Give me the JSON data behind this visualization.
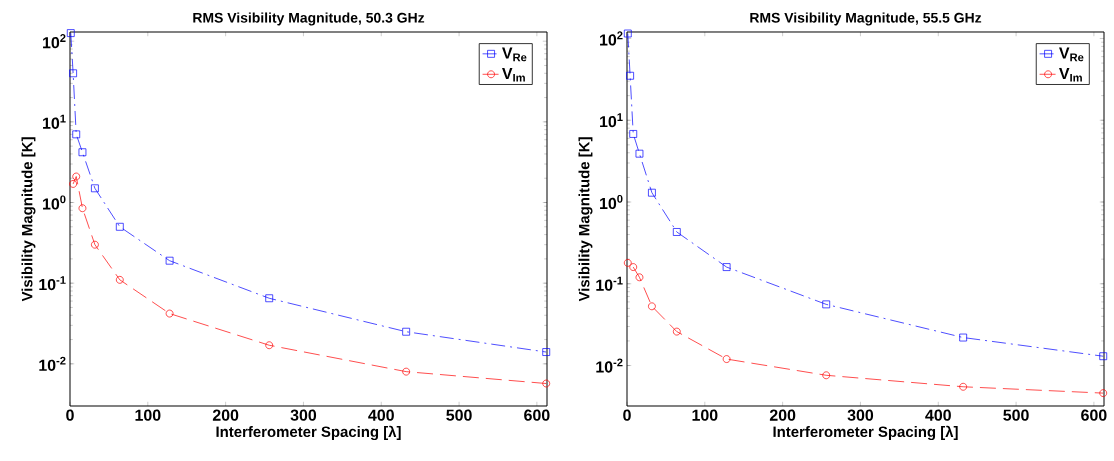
{
  "chart_data": [
    {
      "type": "line",
      "title": "RMS Visibility Magnitude, 50.3 GHz",
      "xlabel": "Interferometer Spacing [λ]",
      "ylabel": "Visibility Magnitude [K]",
      "x": [
        1,
        4,
        8,
        16,
        32,
        64,
        128,
        256,
        432,
        612
      ],
      "series": [
        {
          "name": "V$_{Re}$",
          "color": "#0000ff",
          "marker": "square",
          "line_style": "dashed",
          "values": [
            126,
            40,
            7,
            4.2,
            1.5,
            0.5,
            0.19,
            0.065,
            0.025,
            0.014
          ]
        },
        {
          "name": "V$_{Im}$",
          "color": "#ff0000",
          "marker": "circle",
          "line_style": "dashed",
          "values": [
            null,
            1.7,
            2.1,
            0.85,
            0.3,
            0.11,
            0.042,
            0.017,
            0.008,
            0.0057
          ]
        }
      ],
      "log": "y",
      "legend": "top right",
      "xlim": [
        0,
        613
      ],
      "ylim": [
        0.003,
        130
      ],
      "xticks": [
        0,
        100,
        200,
        300,
        400,
        500,
        600
      ],
      "yticks": [
        {
          "value": 0.01,
          "label": "10$^{-2}$"
        },
        {
          "value": 0.1,
          "label": "10$^{-1}$"
        },
        {
          "value": 1,
          "label": "10$^{0}$"
        },
        {
          "value": 10,
          "label": "10$^{1}$"
        },
        {
          "value": 100,
          "label": "10$^{2}$"
        }
      ]
    },
    {
      "type": "line",
      "title": "RMS Visibility Magnitude, 55.5 GHz",
      "xlabel": "Interferometer Spacing [λ]",
      "ylabel": "Visibility Magnitude [K]",
      "x": [
        1,
        4,
        8,
        16,
        32,
        64,
        128,
        256,
        432,
        612
      ],
      "series": [
        {
          "name": "V$_{Re}$",
          "color": "#0000ff",
          "marker": "square",
          "line_style": "dashed",
          "values": [
            115,
            35,
            6.8,
            3.9,
            1.3,
            0.43,
            0.16,
            0.056,
            0.022,
            0.013
          ]
        },
        {
          "name": "V$_{Im}$",
          "color": "#ff0000",
          "marker": "circle",
          "line_style": "dashed",
          "values": [
            0.18,
            null,
            0.16,
            0.12,
            0.053,
            0.026,
            0.012,
            0.0076,
            0.0055,
            0.0046
          ]
        }
      ],
      "log": "y",
      "legend": "top right",
      "xlim": [
        0,
        613
      ],
      "ylim": [
        0.0032,
        120
      ],
      "xticks": [
        0,
        100,
        200,
        300,
        400,
        500,
        600
      ],
      "yticks": [
        {
          "value": 0.01,
          "label": "10$^{-2}$"
        },
        {
          "value": 0.1,
          "label": "10$^{-1}$"
        },
        {
          "value": 1,
          "label": "10$^{0}$"
        },
        {
          "value": 10,
          "label": "10$^{1}$"
        },
        {
          "value": 100,
          "label": "10$^{2}$"
        }
      ]
    }
  ]
}
